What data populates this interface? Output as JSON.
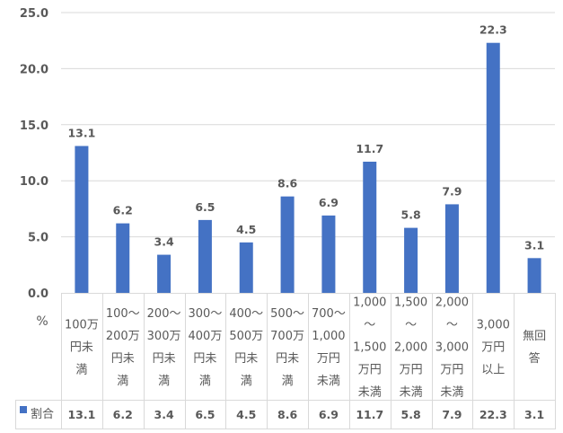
{
  "chart_data": {
    "type": "bar",
    "title": "",
    "ylabel": "%",
    "xlabel": "",
    "ylim": [
      0,
      25
    ],
    "yticks": [
      "0.0",
      "5.0",
      "10.0",
      "15.0",
      "20.0",
      "25.0"
    ],
    "grid": "horizontal",
    "color": "#4472C4",
    "categories": [
      [
        "100万",
        "円未",
        "満"
      ],
      [
        "100～",
        "200万",
        "円未",
        "満"
      ],
      [
        "200～",
        "300万",
        "円未",
        "満"
      ],
      [
        "300～",
        "400万",
        "円未",
        "満"
      ],
      [
        "400～",
        "500万",
        "円未",
        "満"
      ],
      [
        "500～",
        "700万",
        "円未",
        "満"
      ],
      [
        "700～",
        "1,000",
        "万円",
        "未満"
      ],
      [
        "1,000",
        "～",
        "1,500",
        "万円",
        "未満"
      ],
      [
        "1,500",
        "～",
        "2,000",
        "万円",
        "未満"
      ],
      [
        "2,000",
        "～",
        "3,000",
        "万円",
        "未満"
      ],
      [
        "3,000",
        "万円",
        "以上"
      ],
      [
        "無回",
        "答"
      ]
    ],
    "series": [
      {
        "name": "割合",
        "values": [
          13.1,
          6.2,
          3.4,
          6.5,
          4.5,
          8.6,
          6.9,
          11.7,
          5.8,
          7.9,
          22.3,
          3.1
        ],
        "labels": [
          "13.1",
          "6.2",
          "3.4",
          "6.5",
          "4.5",
          "8.6",
          "6.9",
          "11.7",
          "5.8",
          "7.9",
          "22.3",
          "3.1"
        ]
      }
    ],
    "legend": "data-table"
  }
}
